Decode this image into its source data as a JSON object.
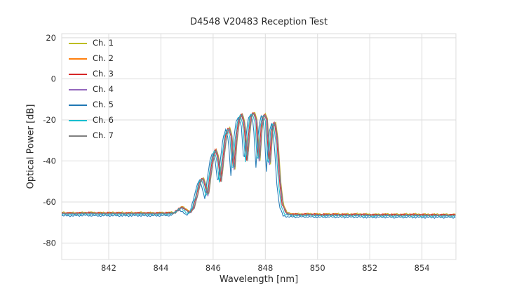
{
  "chart_data": {
    "type": "line",
    "title": "D4548 V20483 Reception Test",
    "xlabel": "Wavelength [nm]",
    "ylabel": "Optical Power [dB]",
    "xlim": [
      840.2,
      855.3
    ],
    "ylim": [
      -88,
      22
    ],
    "xticks": [
      842,
      844,
      846,
      848,
      850,
      852,
      854
    ],
    "yticks": [
      20,
      0,
      -20,
      -40,
      -60,
      -80
    ],
    "grid": true,
    "grid_color": "#dcdcdc",
    "text_color": "#333333",
    "legend_position": "upper-left",
    "base_curve": {
      "comment": "Shared spectral shape read off the plot: noise floor near -65.5 dB, small bump at 844.8 nm, interference fringes between 845.4 and 848.6 nm peaking near -16.5 dB, then floor near -66.3 dB",
      "x": [
        840.2,
        840.7,
        841.2,
        841.7,
        842.2,
        842.7,
        843.2,
        843.7,
        844.1,
        844.5,
        844.65,
        844.8,
        844.95,
        845.1,
        845.25,
        845.4,
        845.5,
        845.6,
        845.7,
        845.8,
        845.9,
        846.0,
        846.1,
        846.2,
        846.3,
        846.4,
        846.5,
        846.6,
        846.7,
        846.8,
        846.9,
        847.0,
        847.1,
        847.2,
        847.3,
        847.38,
        847.46,
        847.56,
        847.66,
        847.76,
        847.86,
        847.96,
        848.06,
        848.16,
        848.26,
        848.36,
        848.46,
        848.56,
        848.66,
        848.8,
        849.0,
        849.3,
        849.7,
        850.1,
        850.6,
        851.1,
        851.6,
        852.1,
        852.6,
        853.1,
        853.6,
        854.1,
        854.6,
        855.0,
        855.3
      ],
      "y": [
        -65.4,
        -65.5,
        -65.3,
        -65.5,
        -65.4,
        -65.5,
        -65.4,
        -65.5,
        -65.4,
        -65.3,
        -64.0,
        -62.3,
        -63.8,
        -65.2,
        -63.0,
        -56.0,
        -50.5,
        -48.0,
        -52.0,
        -57.5,
        -47.0,
        -38.5,
        -34.5,
        -39.0,
        -50.0,
        -38.0,
        -27.5,
        -23.5,
        -28.0,
        -46.0,
        -29.0,
        -19.5,
        -17.2,
        -22.0,
        -40.0,
        -27.0,
        -18.0,
        -16.3,
        -20.5,
        -42.0,
        -23.0,
        -16.8,
        -20.0,
        -44.0,
        -25.0,
        -20.5,
        -30.0,
        -50.0,
        -61.0,
        -65.5,
        -66.0,
        -66.1,
        -66.0,
        -66.2,
        -66.1,
        -66.2,
        -66.1,
        -66.3,
        -66.2,
        -66.3,
        -66.2,
        -66.3,
        -66.3,
        -66.3,
        -66.3
      ]
    },
    "series": [
      {
        "name": "Ch. 1",
        "color": "#bcbd22",
        "dx": 0.03,
        "dy": 0.3
      },
      {
        "name": "Ch. 2",
        "color": "#ff7f0e",
        "dx": 0.02,
        "dy": 0.15
      },
      {
        "name": "Ch. 3",
        "color": "#d62728",
        "dx": -0.02,
        "dy": 0.1
      },
      {
        "name": "Ch. 4",
        "color": "#9467bd",
        "dx": 0.01,
        "dy": -0.3
      },
      {
        "name": "Ch. 5",
        "color": "#1f77b4",
        "dx": -0.12,
        "dy": -1.2
      },
      {
        "name": "Ch. 6",
        "color": "#17becf",
        "dx": -0.06,
        "dy": -0.5
      },
      {
        "name": "Ch. 7",
        "color": "#7f7f7f",
        "dx": 0.02,
        "dy": -0.15
      }
    ]
  }
}
